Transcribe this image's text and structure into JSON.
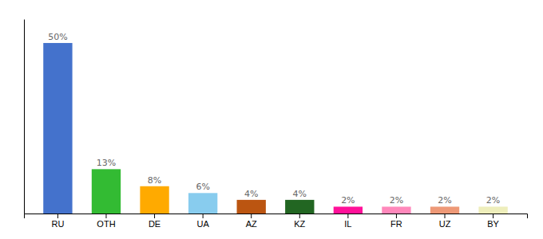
{
  "chart_data": {
    "type": "bar",
    "categories": [
      "RU",
      "OTH",
      "DE",
      "UA",
      "AZ",
      "KZ",
      "IL",
      "FR",
      "UZ",
      "BY"
    ],
    "values": [
      50,
      13,
      8,
      6,
      4,
      4,
      2,
      2,
      2,
      2
    ],
    "value_labels": [
      "50%",
      "13%",
      "8%",
      "6%",
      "4%",
      "4%",
      "2%",
      "2%",
      "2%",
      "2%"
    ],
    "colors": [
      "#4472cc",
      "#33bb33",
      "#ffaa00",
      "#88ccee",
      "#bb5511",
      "#226622",
      "#ff1199",
      "#ff88bb",
      "#ee9977",
      "#eeeebb"
    ],
    "ylim": [
      0,
      57
    ],
    "data_labels": true,
    "tick_labels": "x",
    "grid": false
  }
}
